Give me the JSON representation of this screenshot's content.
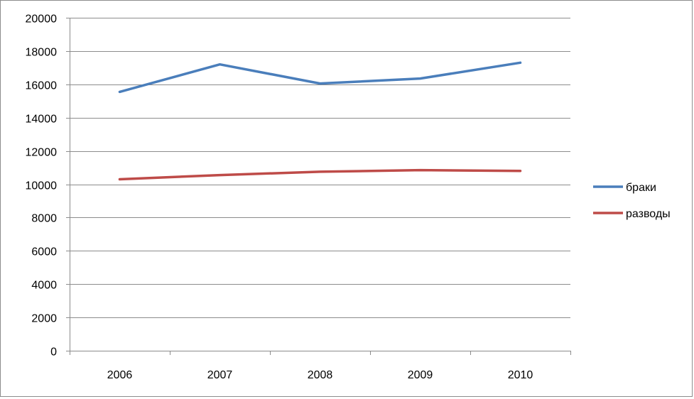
{
  "chart_data": {
    "type": "line",
    "title": "",
    "xlabel": "",
    "ylabel": "",
    "categories": [
      "2006",
      "2007",
      "2008",
      "2009",
      "2010"
    ],
    "ylim": [
      0,
      20000
    ],
    "yticks": [
      0,
      2000,
      4000,
      6000,
      8000,
      10000,
      12000,
      14000,
      16000,
      18000,
      20000
    ],
    "grid": true,
    "legend_position": "right",
    "series": [
      {
        "name": "браки",
        "color": "#4a7ebb",
        "values": [
          15550,
          17200,
          16050,
          16350,
          17300
        ]
      },
      {
        "name": "разводы",
        "color": "#be4b48",
        "values": [
          10300,
          10550,
          10750,
          10850,
          10800
        ]
      }
    ]
  }
}
